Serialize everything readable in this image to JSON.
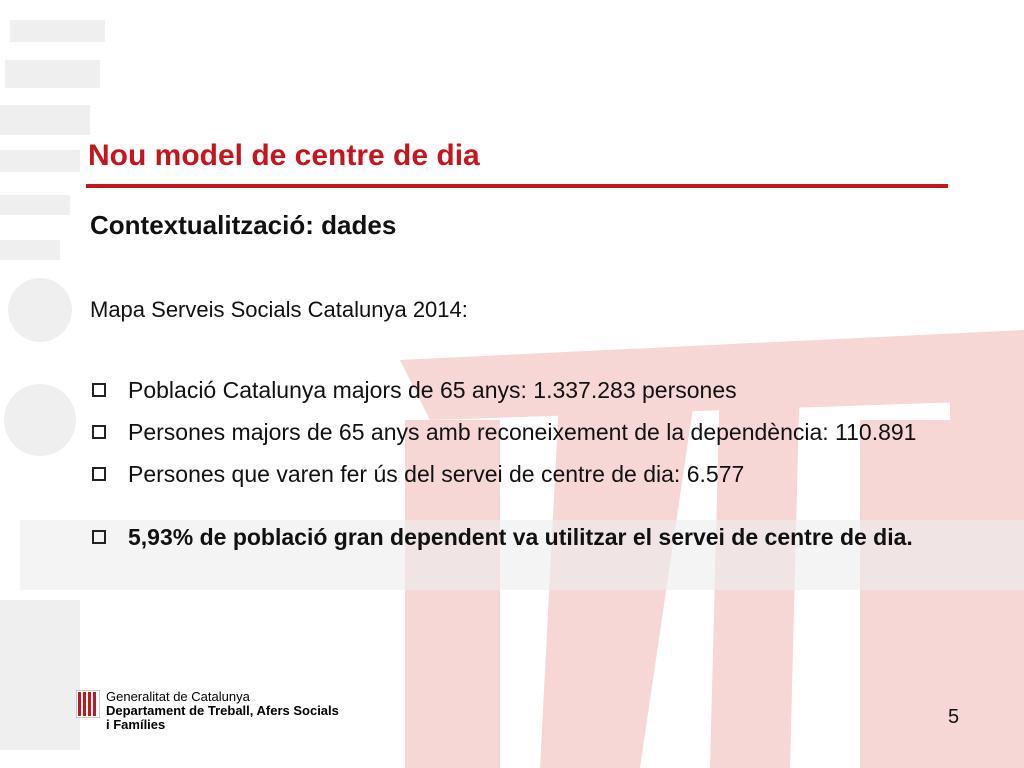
{
  "slide": {
    "title": "Nou model de centre de dia",
    "subtitle": "Contextualització: dades",
    "intro": "Mapa Serveis Socials Catalunya 2014:",
    "bullets": [
      "Població Catalunya majors de 65 anys: 1.337.283 persones",
      "Persones majors de 65 anys amb reconeixement de la dependència: 110.891",
      "Persones que varen fer ús del servei de centre de dia: 6.577",
      "5,93% de població gran dependent va utilitzar el servei de centre de dia."
    ],
    "page_number": "5"
  },
  "footer": {
    "org_line1": "Generalitat de Catalunya",
    "org_line2": "Departament de Treball, Afers Socials",
    "org_line3": "i Famílies"
  },
  "colors": {
    "accent": "#c4161c",
    "watermark": "#f6d3d3"
  },
  "icons": {
    "bullet": "square-outline-icon",
    "logo": "generalitat-emblem-icon"
  }
}
